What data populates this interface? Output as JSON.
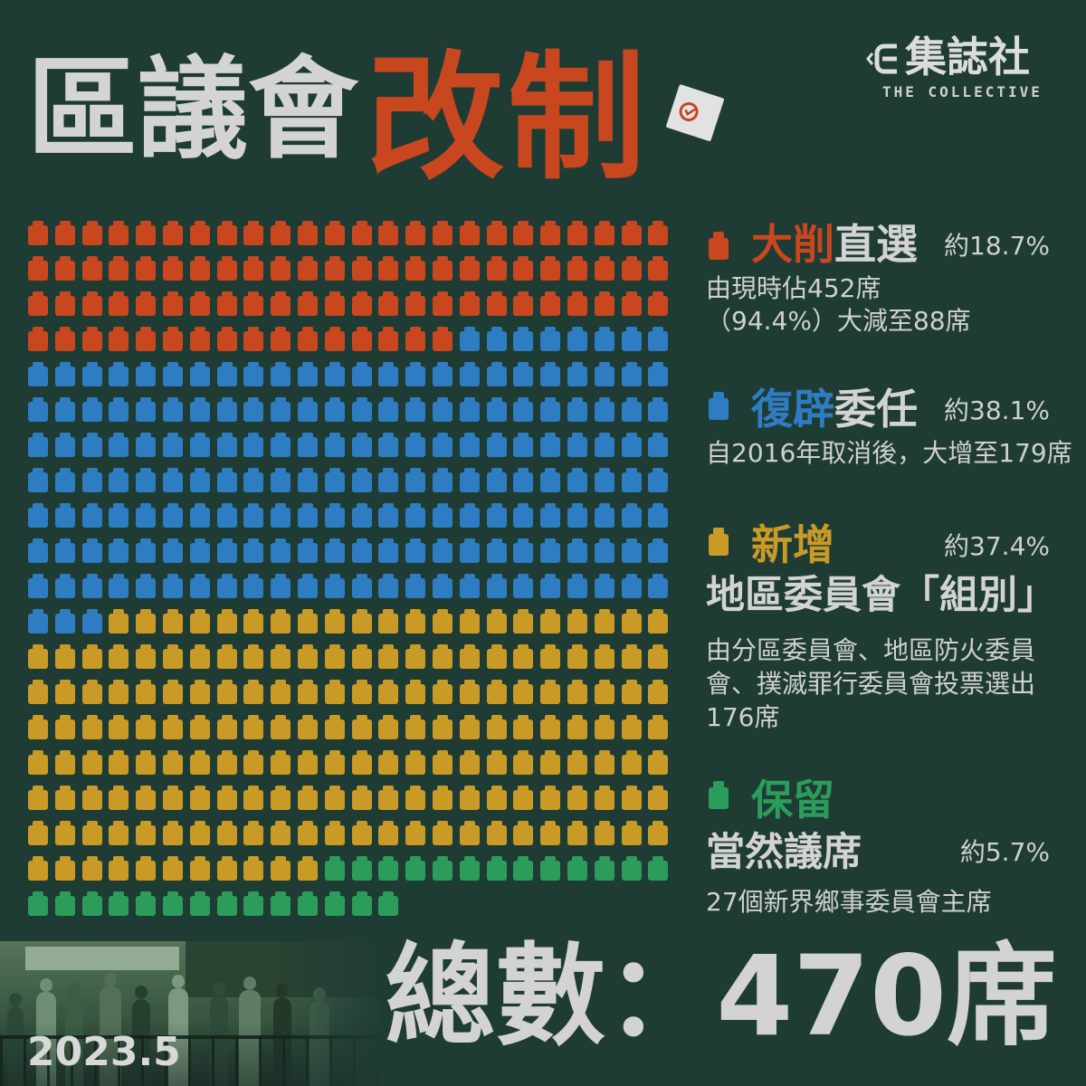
{
  "title": {
    "main": "區議會",
    "accent": "改制"
  },
  "logo": {
    "name": "集誌社",
    "tagline": "THE COLLECTIVE"
  },
  "icons": {
    "logo": "collective-e-icon",
    "ballot": "ballot-paper-icon",
    "legend": "seat-icon"
  },
  "theme": {
    "background": "#1e3c34",
    "text": "#d3d3d3",
    "accent": "#c9471e"
  },
  "chart_data": {
    "type": "pie",
    "series": [
      {
        "label_accent": "大削",
        "label_plain": "直選",
        "value": 88,
        "percent": "約18.7%",
        "color": "#c9471e",
        "note": [
          "由現時佔452席",
          "（94.4%）大減至88席"
        ]
      },
      {
        "label_accent": "復辟",
        "label_plain": "委任",
        "value": 179,
        "percent": "約38.1%",
        "color": "#2e7dc2",
        "note": [
          "自2016年取消後，大增至179席"
        ]
      },
      {
        "label_accent": "新增",
        "subtitle": "地區委員會「組別」",
        "value": 176,
        "percent": "約37.4%",
        "color": "#c99a26",
        "note": [
          "由分區委員會、地區防火委員",
          "會、撲滅罪行委員會投票選出",
          "176席"
        ]
      },
      {
        "label_accent": "保留",
        "subtitle": "當然議席",
        "value": 27,
        "percent": "約5.7%",
        "color": "#2c9c5b",
        "note": [
          "27個新界鄉事委員會主席"
        ]
      }
    ]
  },
  "footer": {
    "total_label": "總數：470席",
    "date": "2023.5"
  }
}
